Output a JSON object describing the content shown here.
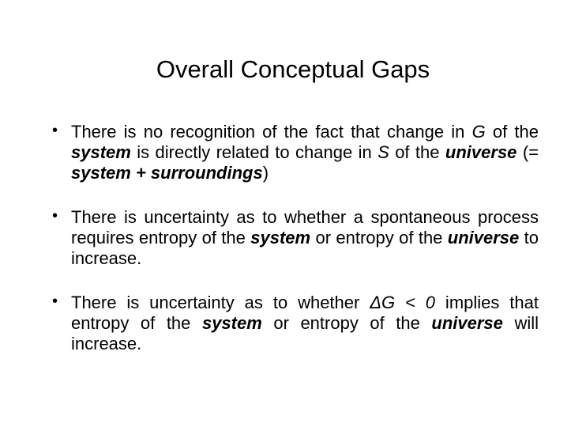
{
  "title": "Overall Conceptual Gaps",
  "bullets": [
    {
      "segments": [
        {
          "t": "There is no recognition of the fact that change in "
        },
        {
          "t": "G",
          "cls": "i"
        },
        {
          "t": " of the "
        },
        {
          "t": "system",
          "cls": "bi"
        },
        {
          "t": " is directly related to change in "
        },
        {
          "t": "S",
          "cls": "i"
        },
        {
          "t": " of the "
        },
        {
          "t": "universe",
          "cls": "bi"
        },
        {
          "t": " (= "
        },
        {
          "t": "system + surroundings",
          "cls": "bi"
        },
        {
          "t": ")"
        }
      ]
    },
    {
      "segments": [
        {
          "t": "There is uncertainty as to whether a spontaneous process requires entropy of the "
        },
        {
          "t": "system",
          "cls": "bi"
        },
        {
          "t": " or entropy of the "
        },
        {
          "t": "universe",
          "cls": "bi"
        },
        {
          "t": " to increase."
        }
      ]
    },
    {
      "segments": [
        {
          "t": "There is uncertainty as to whether "
        },
        {
          "t": "ΔG < 0",
          "cls": "i"
        },
        {
          "t": " implies that entropy of the "
        },
        {
          "t": "system",
          "cls": "bi"
        },
        {
          "t": " or entropy of the "
        },
        {
          "t": "universe",
          "cls": "bi"
        },
        {
          "t": " will increase."
        }
      ]
    }
  ],
  "typography": {
    "title_fontsize": 31,
    "body_fontsize": 22,
    "font_family": "Arial",
    "text_color": "#000000",
    "background_color": "#ffffff"
  }
}
